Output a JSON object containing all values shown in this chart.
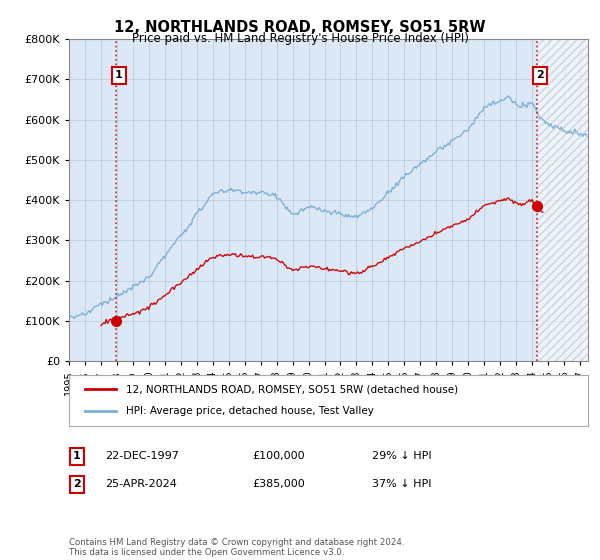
{
  "title": "12, NORTHLANDS ROAD, ROMSEY, SO51 5RW",
  "subtitle": "Price paid vs. HM Land Registry's House Price Index (HPI)",
  "ylim": [
    0,
    800000
  ],
  "yticks": [
    0,
    100000,
    200000,
    300000,
    400000,
    500000,
    600000,
    700000,
    800000
  ],
  "xlim_start": 1995.0,
  "xlim_end": 2027.5,
  "sale1_year": 1997.97,
  "sale1_price": 100000,
  "sale2_year": 2024.32,
  "sale2_price": 385000,
  "sale_color": "#cc0000",
  "hpi_color": "#7bafd4",
  "plot_bg_color": "#dce8f5",
  "legend_label1": "12, NORTHLANDS ROAD, ROMSEY, SO51 5RW (detached house)",
  "legend_label2": "HPI: Average price, detached house, Test Valley",
  "annotation1_date": "22-DEC-1997",
  "annotation1_price": "£100,000",
  "annotation1_hpi": "29% ↓ HPI",
  "annotation2_date": "25-APR-2024",
  "annotation2_price": "£385,000",
  "annotation2_hpi": "37% ↓ HPI",
  "footer": "Contains HM Land Registry data © Crown copyright and database right 2024.\nThis data is licensed under the Open Government Licence v3.0.",
  "bg_color": "#ffffff",
  "grid_color": "#b8cfe0",
  "box_edge_color": "#cc0000"
}
